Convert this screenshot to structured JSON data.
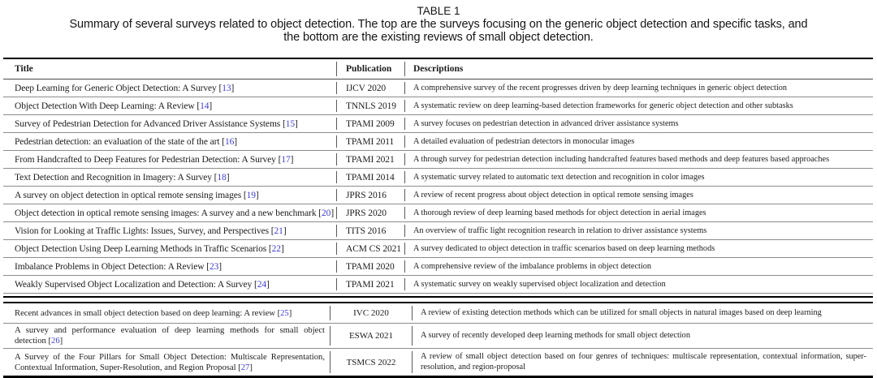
{
  "caption": {
    "label": "TABLE 1",
    "lines": [
      "Summary of several surveys related to object detection. The top are the surveys focusing on the generic object detection and specific tasks, and",
      "the bottom are the existing reviews of small object detection."
    ]
  },
  "table": {
    "columns": [
      "Title",
      "Publication",
      "Descriptions"
    ],
    "top_rows": [
      {
        "title": "Deep Learning for Generic Object Detection: A Survey",
        "citation": "13",
        "publication": "IJCV 2020",
        "description": "A comprehensive survey of the recent progresses driven by deep learning techniques in generic object detection"
      },
      {
        "title": "Object Detection With Deep Learning: A Review",
        "citation": "14",
        "publication": "TNNLS 2019",
        "description": "A systematic review on deep learning-based detection frameworks for generic object detection and other subtasks"
      },
      {
        "title": "Survey of Pedestrian Detection for Advanced Driver Assistance Systems",
        "citation": "15",
        "publication": "TPAMI 2009",
        "description": "A survey focuses on pedestrian detection in advanced driver assistance systems"
      },
      {
        "title": "Pedestrian detection: an evaluation of the state of the art",
        "citation": "16",
        "publication": "TPAMI 2011",
        "description": "A detailed evaluation of pedestrian detectors in monocular images"
      },
      {
        "title": "From Handcrafted to Deep Features for Pedestrian Detection: A Survey",
        "citation": "17",
        "publication": "TPAMI 2021",
        "description": "A through survey for pedestrian detection including handcrafted features based methods and deep features based approaches"
      },
      {
        "title": "Text Detection and Recognition in Imagery: A Survey",
        "citation": "18",
        "publication": "TPAMI 2014",
        "description": "A systematic survey related to automatic text detection and recognition in color images"
      },
      {
        "title": "A survey on object detection in optical remote sensing images",
        "citation": "19",
        "publication": "JPRS 2016",
        "description": "A review of recent progress about object detection in optical remote sensing images"
      },
      {
        "title": "Object detection in optical remote sensing images: A survey and a new benchmark",
        "citation": "20",
        "publication": "JPRS 2020",
        "description": "A thorough review of deep learning based methods for object detection in aerial images"
      },
      {
        "title": "Vision for Looking at Traffic Lights: Issues, Survey, and Perspectives",
        "citation": "21",
        "publication": "TITS 2016",
        "description": "An overview of traffic light recognition research in relation to driver assistance systems"
      },
      {
        "title": "Object Detection Using Deep Learning Methods in Traffic Scenarios",
        "citation": "22",
        "publication": "ACM CS 2021",
        "description": "A survey dedicated to object detection in traffic scenarios based on deep learning methods"
      },
      {
        "title": "Imbalance Problems in Object Detection: A Review",
        "citation": "23",
        "publication": "TPAMI 2020",
        "description": "A comprehensive review of the imbalance problems in object detection"
      },
      {
        "title": "Weakly Supervised Object Localization and Detection: A Survey",
        "citation": "24",
        "publication": "TPAMI 2021",
        "description": "A systematic survey on weakly supervised object localization and detection"
      }
    ],
    "bottom_rows": [
      {
        "title": "Recent advances in small object detection based on deep learning: A review",
        "citation": "25",
        "publication": "IVC 2020",
        "description": "A review of existing detection methods which can be utilized for small objects in natural images based on deep learning"
      },
      {
        "title": "A survey and performance evaluation of deep learning methods for small object detection",
        "citation": "26",
        "publication": "ESWA 2021",
        "description": "A survey of recently developed deep learning methods for small object detection"
      },
      {
        "title": "A Survey of the Four Pillars for Small Object Detection: Multiscale Representation, Contextual Information, Super-Resolution, and Region Proposal",
        "citation": "27",
        "publication": "TSMCS 2022",
        "description": "A review of small object detection based on four genres of techniques: multiscale representation, contextual information, super-resolution, and region-proposal"
      }
    ]
  },
  "colors": {
    "citation": "#3d3dd2",
    "rule_dark": "#000000",
    "row_line": "#8c8c8c",
    "text": "#1c1c1c"
  }
}
